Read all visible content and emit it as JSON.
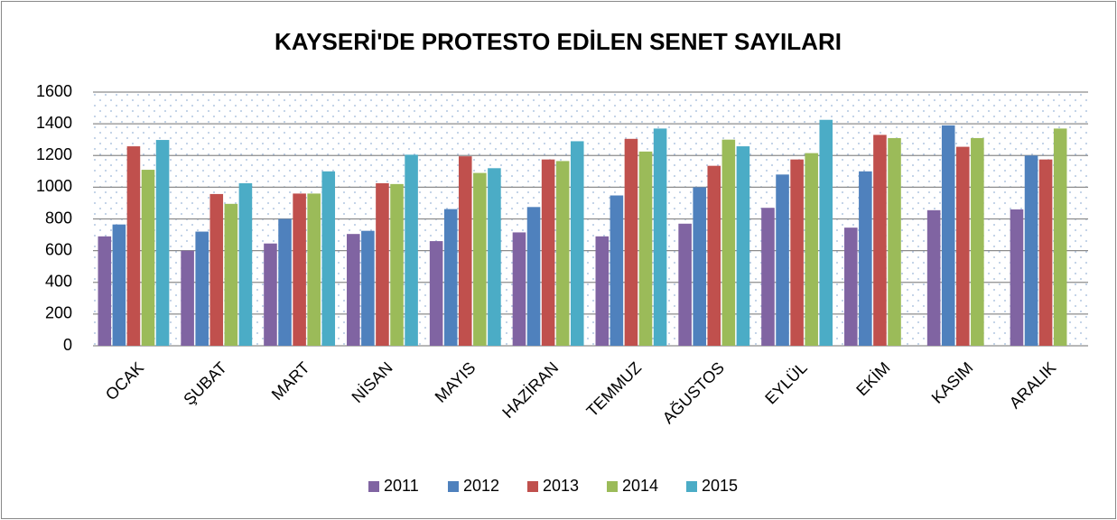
{
  "chart_data": {
    "type": "bar",
    "title": "KAYSERİ'DE PROTESTO EDİLEN SENET SAYILARI",
    "categories": [
      "OCAK",
      "ŞUBAT",
      "MART",
      "NİSAN",
      "MAYIS",
      "HAZİRAN",
      "TEMMUZ",
      "AĞUSTOS",
      "EYLÜL",
      "EKİM",
      "KASIM",
      "ARALIK"
    ],
    "series": [
      {
        "name": "2011",
        "color": "#8064a2",
        "values": [
          690,
          600,
          645,
          705,
          660,
          715,
          690,
          770,
          870,
          745,
          855,
          860
        ]
      },
      {
        "name": "2012",
        "color": "#4f81bd",
        "values": [
          765,
          720,
          800,
          725,
          862,
          875,
          948,
          1000,
          1080,
          1100,
          1390,
          1200
        ]
      },
      {
        "name": "2013",
        "color": "#c0504d",
        "values": [
          1258,
          957,
          960,
          1025,
          1195,
          1175,
          1305,
          1135,
          1175,
          1330,
          1255,
          1175
        ]
      },
      {
        "name": "2014",
        "color": "#9bbb59",
        "values": [
          1110,
          895,
          960,
          1020,
          1090,
          1165,
          1225,
          1300,
          1215,
          1310,
          1310,
          1370
        ]
      },
      {
        "name": "2015",
        "color": "#4bacc6",
        "values": [
          1298,
          1025,
          1100,
          1205,
          1120,
          1290,
          1370,
          1258,
          1425,
          null,
          null,
          null
        ]
      }
    ],
    "ylim": [
      0,
      1600
    ],
    "yticks": [
      0,
      200,
      400,
      600,
      800,
      1000,
      1200,
      1400,
      1600
    ],
    "grid": true,
    "legend": "bottom"
  }
}
